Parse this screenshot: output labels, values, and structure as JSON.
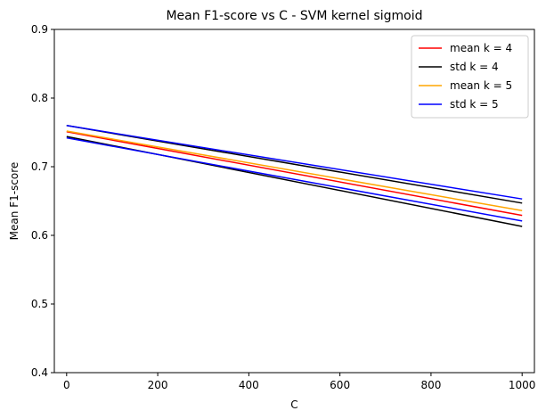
{
  "chart_data": {
    "type": "line",
    "title": "Mean F1-score vs C - SVM kernel sigmoid",
    "xlabel": "C",
    "ylabel": "Mean F1-score",
    "xlim": [
      -27,
      1027
    ],
    "ylim": [
      0.4,
      0.9
    ],
    "xticks": [
      0,
      200,
      400,
      600,
      800,
      1000
    ],
    "yticks": [
      0.4,
      0.5,
      0.6,
      0.7,
      0.8,
      0.9
    ],
    "grid": false,
    "legend_position": "top-right",
    "x": [
      0,
      1000
    ],
    "series": [
      {
        "name": "mean k = 4",
        "color": "#ff0000",
        "values": [
          0.751,
          0.629
        ]
      },
      {
        "name": "std k = 4",
        "color": "#000000",
        "values": [
          0.76,
          0.647
        ]
      },
      {
        "name": "std k = 4",
        "color": "#000000",
        "values": [
          0.744,
          0.613
        ],
        "legend": false
      },
      {
        "name": "mean k = 5",
        "color": "#ffa500",
        "values": [
          0.752,
          0.636
        ]
      },
      {
        "name": "std k = 5",
        "color": "#0000ff",
        "values": [
          0.76,
          0.653
        ]
      },
      {
        "name": "std k = 5",
        "color": "#0000ff",
        "values": [
          0.742,
          0.621
        ],
        "legend": false
      }
    ]
  }
}
